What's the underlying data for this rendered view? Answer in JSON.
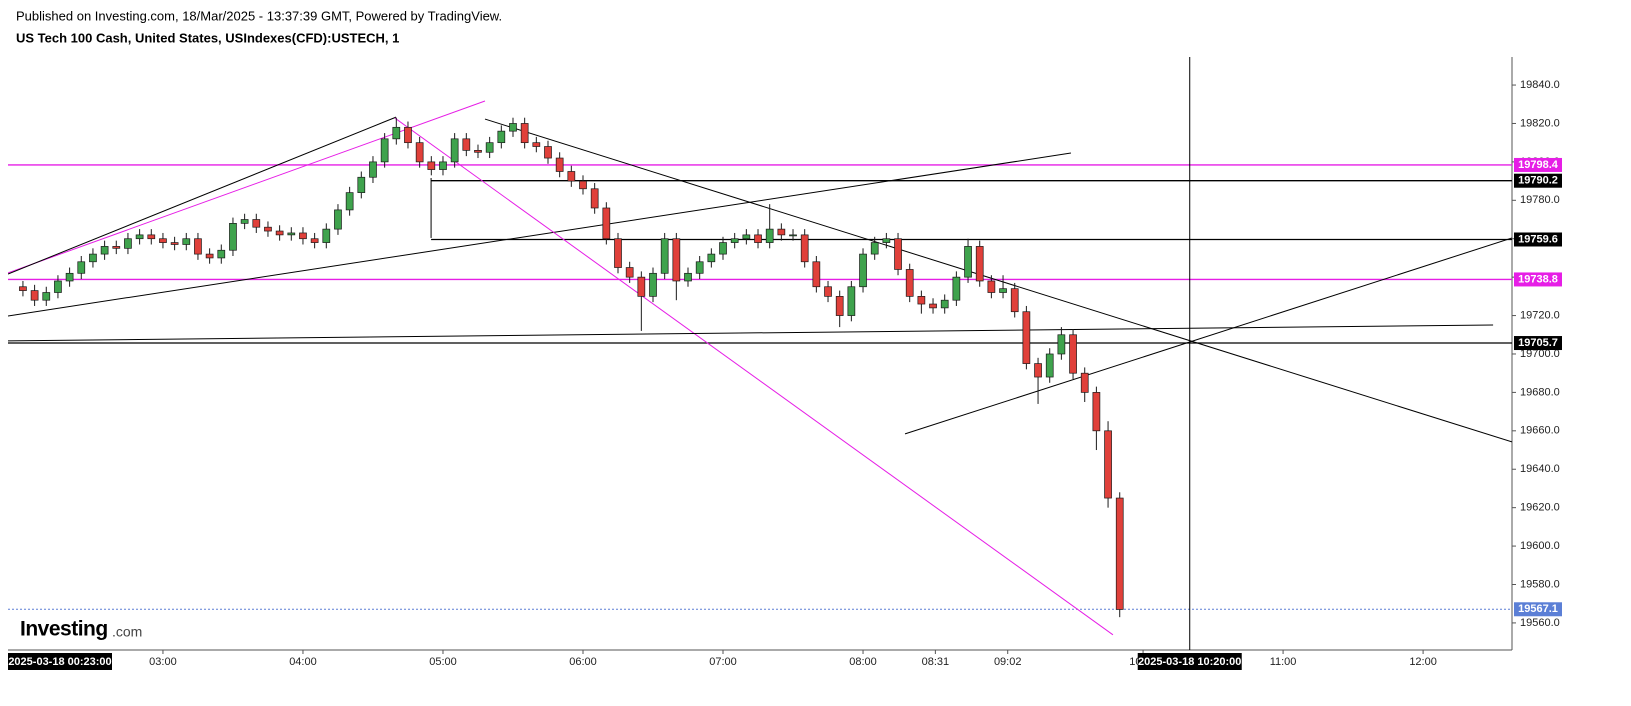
{
  "header": {
    "published": "Published on Investing.com, 18/Mar/2025 - 13:37:39 GMT, Powered by TradingView.",
    "title": "US Tech 100 Cash, United States, USIndexes(CFD):USTECH, 1"
  },
  "logo": {
    "brand": "Investing",
    "suffix": ".com"
  },
  "chart_data": {
    "type": "candlestick",
    "up_color": "#3fa34d",
    "down_color": "#e0403a",
    "outline_color": "#1a1a1a",
    "x": [
      120,
      125,
      130,
      135,
      140,
      145,
      150,
      155,
      160,
      165,
      170,
      175,
      180,
      185,
      190,
      195,
      200,
      205,
      210,
      215,
      220,
      225,
      230,
      235,
      240,
      245,
      250,
      255,
      260,
      265,
      270,
      275,
      280,
      285,
      290,
      295,
      300,
      305,
      310,
      315,
      320,
      325,
      330,
      335,
      340,
      345,
      350,
      355,
      360,
      365,
      370,
      375,
      380,
      385,
      390,
      395,
      400,
      405,
      410,
      415,
      420,
      425,
      430,
      435,
      440,
      445,
      450,
      455,
      460,
      465,
      470,
      475,
      480,
      485,
      490,
      495,
      500,
      505,
      510,
      515,
      520,
      525,
      530,
      535,
      540,
      545,
      550,
      555,
      560,
      565,
      570,
      575,
      580,
      585,
      590
    ],
    "open": [
      19735,
      19733,
      19728,
      19732,
      19738,
      19742,
      19748,
      19752,
      19756,
      19755,
      19760,
      19762,
      19760,
      19758,
      19757,
      19760,
      19752,
      19750,
      19754,
      19768,
      19770,
      19766,
      19764,
      19762,
      19763,
      19760,
      19758,
      19765,
      19775,
      19784,
      19792,
      19800,
      19812,
      19818,
      19810,
      19800,
      19796,
      19800,
      19812,
      19806,
      19805,
      19810,
      19816,
      19820,
      19810,
      19808,
      19802,
      19795,
      19790,
      19786,
      19776,
      19760,
      19745,
      19740,
      19730,
      19742,
      19760,
      19738,
      19742,
      19748,
      19752,
      19758,
      19760,
      19762,
      19758,
      19765,
      19762,
      19762,
      19748,
      19735,
      19730,
      19720,
      19735,
      19752,
      19758,
      19760,
      19744,
      19730,
      19726,
      19724,
      19728,
      19740,
      19756,
      19738,
      19732,
      19734,
      19722,
      19695,
      19688,
      19700,
      19710,
      19690,
      19680,
      19660,
      19625
    ],
    "high": [
      19738,
      19736,
      19735,
      19741,
      19745,
      19751,
      19755,
      19759,
      19759,
      19763,
      19765,
      19765,
      19763,
      19761,
      19763,
      19763,
      19755,
      19757,
      19771,
      19773,
      19773,
      19769,
      19767,
      19766,
      19766,
      19763,
      19768,
      19778,
      19787,
      19795,
      19803,
      19815,
      19823,
      19821,
      19813,
      19803,
      19803,
      19815,
      19815,
      19809,
      19813,
      19819,
      19823,
      19823,
      19813,
      19811,
      19805,
      19798,
      19793,
      19789,
      19779,
      19763,
      19748,
      19743,
      19745,
      19763,
      19763,
      19745,
      19751,
      19755,
      19761,
      19763,
      19765,
      19765,
      19778,
      19768,
      19765,
      19765,
      19751,
      19738,
      19733,
      19738,
      19755,
      19761,
      19763,
      19763,
      19747,
      19733,
      19729,
      19731,
      19743,
      19760,
      19759,
      19741,
      19741,
      19737,
      19725,
      19698,
      19703,
      19714,
      19713,
      19693,
      19683,
      19665,
      19628
    ],
    "low": [
      19730,
      19725,
      19725,
      19729,
      19735,
      19739,
      19745,
      19749,
      19752,
      19752,
      19757,
      19757,
      19755,
      19754,
      19754,
      19749,
      19747,
      19747,
      19751,
      19765,
      19763,
      19761,
      19759,
      19759,
      19757,
      19755,
      19755,
      19762,
      19772,
      19781,
      19789,
      19797,
      19809,
      19807,
      19797,
      19793,
      19793,
      19797,
      19803,
      19802,
      19802,
      19807,
      19813,
      19807,
      19805,
      19799,
      19792,
      19787,
      19783,
      19773,
      19757,
      19742,
      19737,
      19712,
      19727,
      19739,
      19728,
      19735,
      19739,
      19745,
      19749,
      19755,
      19757,
      19755,
      19755,
      19759,
      19759,
      19745,
      19732,
      19727,
      19714,
      19717,
      19732,
      19749,
      19755,
      19741,
      19727,
      19721,
      19721,
      19721,
      19725,
      19737,
      19735,
      19729,
      19729,
      19719,
      19692,
      19674,
      19685,
      19697,
      19687,
      19675,
      19650,
      19620,
      19563
    ],
    "close": [
      19733,
      19728,
      19732,
      19738,
      19742,
      19748,
      19752,
      19756,
      19755,
      19760,
      19762,
      19760,
      19758,
      19757,
      19760,
      19752,
      19750,
      19754,
      19768,
      19770,
      19766,
      19764,
      19762,
      19763,
      19760,
      19758,
      19765,
      19775,
      19784,
      19792,
      19800,
      19812,
      19818,
      19810,
      19800,
      19796,
      19800,
      19812,
      19806,
      19805,
      19810,
      19816,
      19820,
      19810,
      19808,
      19802,
      19795,
      19790,
      19786,
      19776,
      19760,
      19745,
      19740,
      19730,
      19742,
      19760,
      19738,
      19742,
      19748,
      19752,
      19758,
      19760,
      19762,
      19758,
      19765,
      19762,
      19762,
      19748,
      19735,
      19730,
      19720,
      19735,
      19752,
      19758,
      19760,
      19744,
      19730,
      19726,
      19724,
      19728,
      19740,
      19756,
      19738,
      19732,
      19734,
      19722,
      19695,
      19688,
      19700,
      19710,
      19690,
      19680,
      19660,
      19625,
      19567
    ],
    "xlim": [
      113.6,
      758.1
    ],
    "xticks": [
      {
        "value": 180,
        "label": "03:00"
      },
      {
        "value": 240,
        "label": "04:00"
      },
      {
        "value": 300,
        "label": "05:00"
      },
      {
        "value": 360,
        "label": "06:00"
      },
      {
        "value": 420,
        "label": "07:00"
      },
      {
        "value": 480,
        "label": "08:00"
      },
      {
        "value": 511,
        "label": "08:31"
      },
      {
        "value": 542,
        "label": "09:02"
      },
      {
        "value": 600,
        "label": "10:00"
      },
      {
        "value": 660,
        "label": "11:00"
      },
      {
        "value": 720,
        "label": "12:00"
      }
    ],
    "ylim": [
      19545.9,
      19854.6
    ],
    "yticks": [
      {
        "value": 19560,
        "label": "19560.0"
      },
      {
        "value": 19580,
        "label": "19580.0"
      },
      {
        "value": 19600,
        "label": "19600.0"
      },
      {
        "value": 19620,
        "label": "19620.0"
      },
      {
        "value": 19640,
        "label": "19640.0"
      },
      {
        "value": 19660,
        "label": "19660.0"
      },
      {
        "value": 19680,
        "label": "19680.0"
      },
      {
        "value": 19700,
        "label": "19700.0"
      },
      {
        "value": 19720,
        "label": "19720.0"
      },
      {
        "value": 19740,
        "label": "19740.0"
      },
      {
        "value": 19760,
        "label": "19760.0"
      },
      {
        "value": 19780,
        "label": "19780.0"
      },
      {
        "value": 19800,
        "label": "19800.0"
      },
      {
        "value": 19820,
        "label": "19820.0"
      },
      {
        "value": 19840,
        "label": "19840.0"
      }
    ],
    "levels": [
      {
        "value": 19798.4,
        "color": "#e61ee6"
      },
      {
        "value": 19790.2,
        "color": "#000000",
        "from": 294.9
      },
      {
        "value": 19759.6,
        "color": "#000000",
        "from": 294.9
      },
      {
        "value": 19738.8,
        "color": "#e61ee6"
      },
      {
        "value": 19705.7,
        "color": "#000000"
      },
      {
        "value": 19567.1,
        "color": "#5b7fd6",
        "dashed": true
      }
    ],
    "trendlines": [
      {
        "color": "#e61ee6",
        "x": [
          113.6,
          318.0
        ],
        "y": [
          19742.2,
          19831.7
        ]
      },
      {
        "color": "#000000",
        "x": [
          113.6,
          279.9
        ],
        "y": [
          19741.6,
          19823.3
        ]
      },
      {
        "color": "#000000",
        "x": [
          318.0,
          758.1
        ],
        "y": [
          19822.3,
          19654.2
        ]
      },
      {
        "color": "#000000",
        "x": [
          113.6,
          569.1
        ],
        "y": [
          19719.8,
          19804.6
        ]
      },
      {
        "color": "#e61ee6",
        "x": [
          279.4,
          587.1
        ],
        "y": [
          19822.8,
          19553.8
        ]
      },
      {
        "color": "#000000",
        "x": [
          113.6,
          750.0
        ],
        "y": [
          19706.8,
          19715.1
        ]
      },
      {
        "color": "#000000",
        "x": [
          498.0,
          758.1
        ],
        "y": [
          19658.4,
          19760.4
        ]
      },
      {
        "color": "#000000",
        "x": [
          294.9,
          294.9
        ],
        "y": [
          19791.6,
          19760.4
        ]
      }
    ],
    "start_label": "2025-03-18 00:23:00",
    "crosshair": {
      "x": 620,
      "label": "2025-03-18 10:20:00"
    }
  }
}
